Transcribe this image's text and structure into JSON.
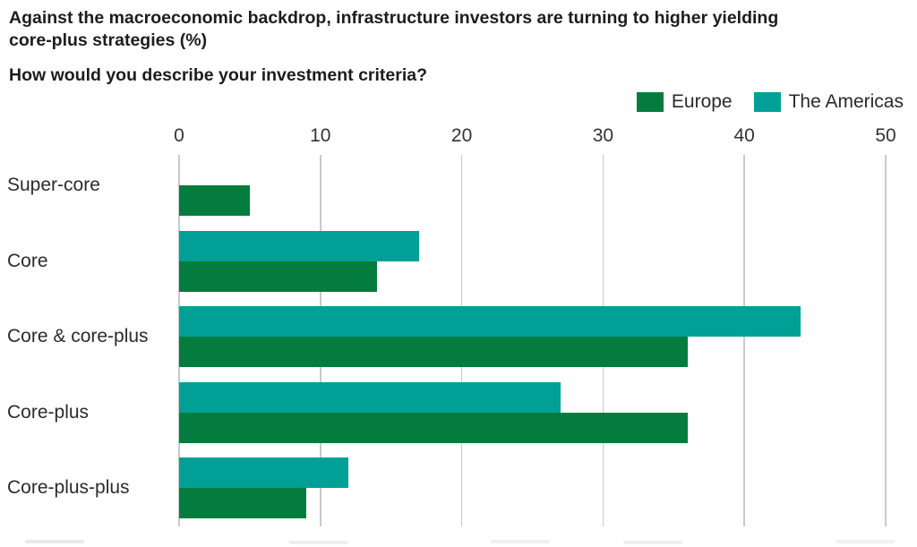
{
  "title": {
    "lines": [
      "Against the macroeconomic backdrop, infrastructure investors are turning to higher yielding",
      "core-plus strategies (%)"
    ]
  },
  "subtitle": "How would you describe your investment criteria?",
  "legend": [
    {
      "label": "Europe",
      "color": "#047C3D"
    },
    {
      "label": "The Americas",
      "color": "#00A096"
    }
  ],
  "colors": {
    "europe_green": "#047C3D",
    "americas_teal": "#00A096",
    "gridline": "#c9c9c9",
    "text_dark": "#1d1d1d"
  },
  "chart_data": {
    "type": "bar",
    "orientation": "horizontal",
    "title": "Against the macroeconomic backdrop, infrastructure investors are turning to higher yielding core-plus strategies (%)",
    "subtitle": "How would you describe your investment criteria?",
    "categories": [
      "Super-core",
      "Core",
      "Core & core-plus",
      "Core-plus",
      "Core-plus-plus"
    ],
    "series": [
      {
        "name": "Europe",
        "color": "#047C3D",
        "values": [
          5,
          14,
          36,
          36,
          9
        ]
      },
      {
        "name": "The Americas",
        "color": "#00A096",
        "values": [
          0,
          17,
          44,
          27,
          12
        ]
      }
    ],
    "group_order": [
      "The Americas",
      "Europe"
    ],
    "xlabel": "",
    "ylabel": "",
    "axis": {
      "min": 0,
      "max": 50,
      "ticks": [
        0,
        10,
        20,
        30,
        40,
        50
      ],
      "position": "top"
    },
    "grid": true,
    "legend_position": "top-right"
  }
}
